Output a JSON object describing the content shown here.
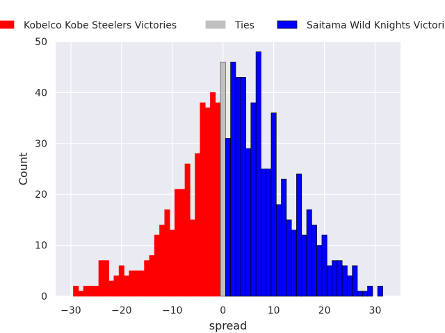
{
  "chart_data": {
    "type": "bar",
    "xlabel": "spread",
    "ylabel": "Count",
    "xlim": [
      -33,
      35
    ],
    "ylim": [
      0,
      50
    ],
    "x_ticks": [
      -30,
      -20,
      -10,
      0,
      10,
      20,
      30
    ],
    "x_tick_labels": [
      "−30",
      "−20",
      "−10",
      "0",
      "10",
      "20",
      "30"
    ],
    "y_ticks": [
      0,
      10,
      20,
      30,
      40,
      50
    ],
    "grid": true,
    "legend_position": "top",
    "bin_width": 1,
    "series": [
      {
        "name": "Kobelco Kobe Steelers Victories",
        "color": "#ff0000",
        "edgecolor": "#ff0000",
        "x": [
          -29,
          -28,
          -27,
          -26,
          -25,
          -24,
          -23,
          -22,
          -21,
          -20,
          -19,
          -18,
          -17,
          -16,
          -15,
          -14,
          -13,
          -12,
          -11,
          -10,
          -9,
          -8,
          -7,
          -6,
          -5,
          -4,
          -3,
          -2,
          -1
        ],
        "values": [
          2,
          1,
          2,
          2,
          2,
          7,
          7,
          3,
          4,
          6,
          4,
          5,
          5,
          5,
          7,
          8,
          12,
          14,
          17,
          13,
          21,
          21,
          26,
          15,
          28,
          38,
          37,
          40,
          38
        ]
      },
      {
        "name": "Ties",
        "color": "#c0c0c0",
        "edgecolor": "#555555",
        "x": [
          0
        ],
        "values": [
          46
        ]
      },
      {
        "name": "Saitama Wild Knights Victories",
        "color": "#0000ff",
        "edgecolor": "#000000",
        "x": [
          1,
          2,
          3,
          4,
          5,
          6,
          7,
          8,
          9,
          10,
          11,
          12,
          13,
          14,
          15,
          16,
          17,
          18,
          19,
          20,
          21,
          22,
          23,
          24,
          25,
          26,
          27,
          28,
          29,
          30,
          31
        ],
        "values": [
          31,
          46,
          43,
          43,
          29,
          38,
          48,
          25,
          25,
          36,
          18,
          23,
          15,
          13,
          24,
          12,
          17,
          14,
          10,
          12,
          6,
          7,
          7,
          6,
          4,
          6,
          1,
          1,
          2,
          0,
          2
        ]
      }
    ]
  }
}
